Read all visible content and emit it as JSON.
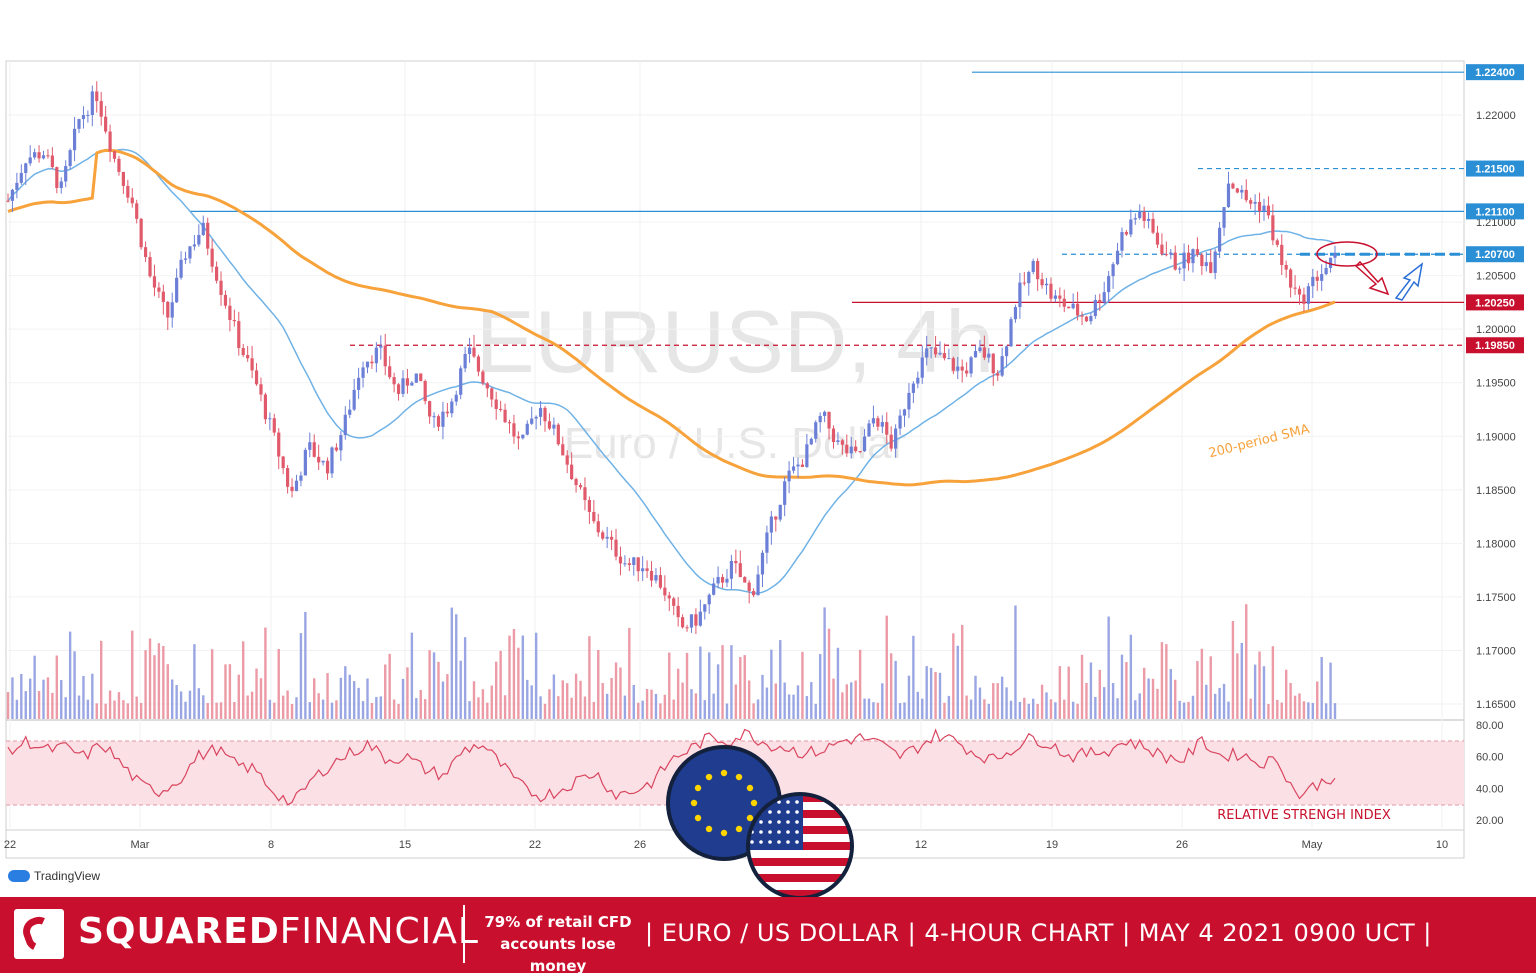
{
  "chart_data": {
    "type": "candlestick",
    "symbol_watermark": "EURUSD, 4h",
    "symbol_subtitle_watermark": "Euro / U.S. Dollar",
    "y_axis_price_ticks": [
      "1.22000",
      "1.21000",
      "1.20500",
      "1.20000",
      "1.19500",
      "1.19000",
      "1.18500",
      "1.18000",
      "1.17500",
      "1.17000",
      "1.16500"
    ],
    "x_axis_ticks": [
      "22",
      "Mar",
      "8",
      "15",
      "22",
      "26",
      "12",
      "19",
      "26",
      "May",
      "10"
    ],
    "levels": [
      {
        "label": "1.22400",
        "value": 1.224,
        "color": "#2b8fd6",
        "style": "solid"
      },
      {
        "label": "1.21500",
        "value": 1.215,
        "color": "#2b8fd6",
        "style": "dashed"
      },
      {
        "label": "1.21100",
        "value": 1.211,
        "color": "#2b8fd6",
        "style": "solid"
      },
      {
        "label": "1.20700",
        "value": 1.207,
        "color": "#2b8fd6",
        "style": "dashed"
      },
      {
        "label": "1.20250",
        "value": 1.2025,
        "color": "#c8102e",
        "style": "solid"
      },
      {
        "label": "1.19850",
        "value": 1.1985,
        "color": "#c8102e",
        "style": "dashed"
      }
    ],
    "sma_label": "200-period SMA",
    "rsi_ticks": [
      "80.00",
      "60.00",
      "40.00",
      "20.00"
    ],
    "rsi_label": "RELATIVE STRENGH INDEX",
    "price_path_approx": [
      1.212,
      1.216,
      1.2165,
      1.213,
      1.2195,
      1.222,
      1.216,
      1.212,
      1.205,
      1.201,
      1.207,
      1.2095,
      1.204,
      1.199,
      1.195,
      1.19,
      1.1845,
      1.189,
      1.187,
      1.191,
      1.197,
      1.198,
      1.194,
      1.196,
      1.191,
      1.193,
      1.198,
      1.195,
      1.192,
      1.189,
      1.193,
      1.19,
      1.186,
      1.182,
      1.18,
      1.178,
      1.178,
      1.176,
      1.172,
      1.173,
      1.176,
      1.178,
      1.175,
      1.181,
      1.186,
      1.188,
      1.192,
      1.189,
      1.188,
      1.192,
      1.189,
      1.195,
      1.198,
      1.197,
      1.196,
      1.198,
      1.196,
      1.203,
      1.206,
      1.203,
      1.202,
      1.201,
      1.204,
      1.209,
      1.211,
      1.208,
      1.206,
      1.207,
      1.206,
      1.214,
      1.212,
      1.2115,
      1.206,
      1.2025,
      1.205,
      1.2065
    ],
    "rsi_path_approx": [
      62,
      70,
      64,
      66,
      60,
      68,
      55,
      42,
      38,
      45,
      60,
      65,
      55,
      52,
      38,
      30,
      45,
      55,
      62,
      68,
      58,
      60,
      52,
      48,
      64,
      68,
      55,
      42,
      35,
      38,
      45,
      50,
      36,
      38,
      44,
      58,
      65,
      72,
      70,
      75,
      68,
      66,
      62,
      64,
      70,
      72,
      68,
      60,
      66,
      74,
      70,
      62,
      58,
      65,
      72,
      68,
      60,
      62,
      64,
      70,
      66,
      60,
      58,
      70,
      60,
      62,
      56,
      58,
      35,
      42,
      48
    ]
  },
  "branding": {
    "company_a": "SQUARED",
    "company_b": "FINANCIAL",
    "risk_warning": "79% of retail CFD accounts lose money",
    "headline": "| EURO / US DOLLAR | 4-HOUR CHART | MAY 4  2021  0900 UCT |",
    "platform": "TradingView"
  },
  "colors": {
    "bull": "#6b7fd7",
    "bear": "#e05a6b",
    "sma200": "#f7a23a",
    "sma50": "#6fb2e6",
    "red_band": "#c8102e",
    "rsi_zone": "#fbe1e6"
  }
}
